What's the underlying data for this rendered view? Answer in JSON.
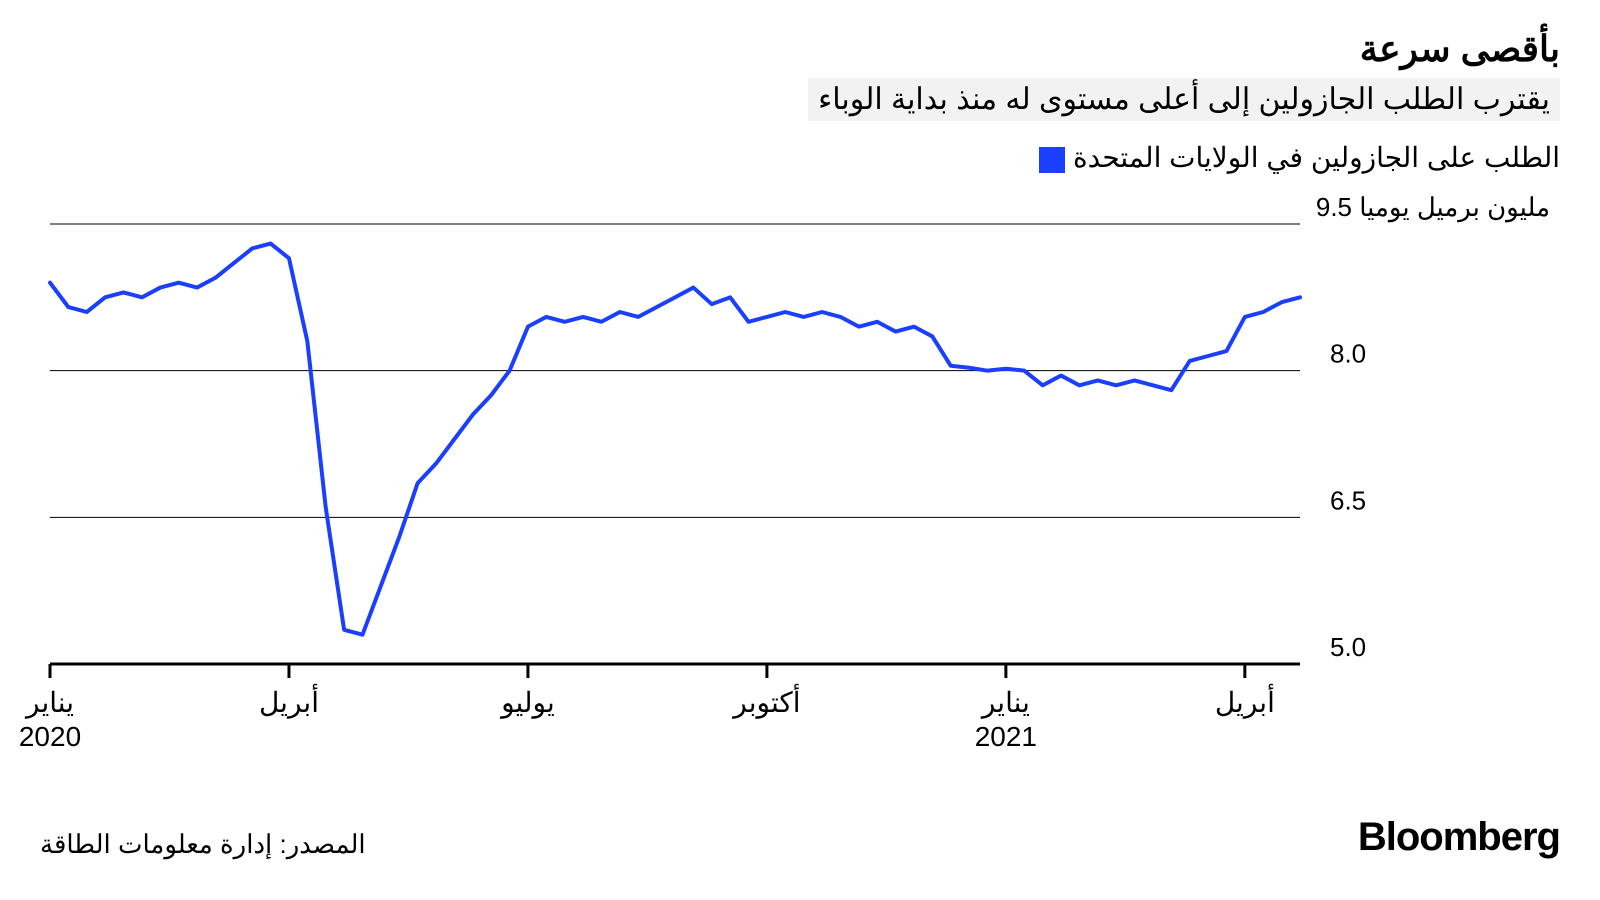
{
  "title": "بأقصى سرعة",
  "subtitle": "يقترب الطلب الجازولين إلى أعلى مستوى له منذ بداية الوباء",
  "legend": {
    "label": "الطلب على الجازولين في الولايات المتحدة",
    "color": "#1b3fff"
  },
  "chart": {
    "type": "line",
    "background": "#ffffff",
    "grid_color": "#000000",
    "axis_color": "#000000",
    "series_color": "#1b3fff",
    "line_width": 4,
    "ylim": [
      5.0,
      9.5
    ],
    "xlim": [
      0,
      68
    ],
    "yticks": [
      {
        "v": 9.5,
        "label": "9.5 مليون برميل يوميا"
      },
      {
        "v": 8.0,
        "label": "8.0"
      },
      {
        "v": 6.5,
        "label": "6.5"
      },
      {
        "v": 5.0,
        "label": "5.0"
      }
    ],
    "xticks": [
      {
        "v": 0,
        "label": "يناير",
        "sub": "2020"
      },
      {
        "v": 13,
        "label": "أبريل",
        "sub": ""
      },
      {
        "v": 26,
        "label": "يوليو",
        "sub": ""
      },
      {
        "v": 39,
        "label": "أكتوبر",
        "sub": ""
      },
      {
        "v": 52,
        "label": "يناير",
        "sub": "2021"
      },
      {
        "v": 65,
        "label": "أبريل",
        "sub": ""
      }
    ],
    "values": [
      8.9,
      8.65,
      8.6,
      8.75,
      8.8,
      8.75,
      8.85,
      8.9,
      8.85,
      8.95,
      9.1,
      9.25,
      9.3,
      9.15,
      8.3,
      6.6,
      5.35,
      5.3,
      5.8,
      6.3,
      6.85,
      7.05,
      7.3,
      7.55,
      7.75,
      8.0,
      8.45,
      8.55,
      8.5,
      8.55,
      8.5,
      8.6,
      8.55,
      8.65,
      8.75,
      8.85,
      8.68,
      8.75,
      8.5,
      8.55,
      8.6,
      8.55,
      8.6,
      8.55,
      8.45,
      8.5,
      8.4,
      8.45,
      8.35,
      8.05,
      8.03,
      8.0,
      8.02,
      8.0,
      7.85,
      7.95,
      7.85,
      7.9,
      7.85,
      7.9,
      7.85,
      7.8,
      8.1,
      8.15,
      8.2,
      8.55,
      8.6,
      8.7,
      8.75
    ]
  },
  "source": "المصدر: إدارة معلومات الطاقة",
  "brand": "Bloomberg"
}
